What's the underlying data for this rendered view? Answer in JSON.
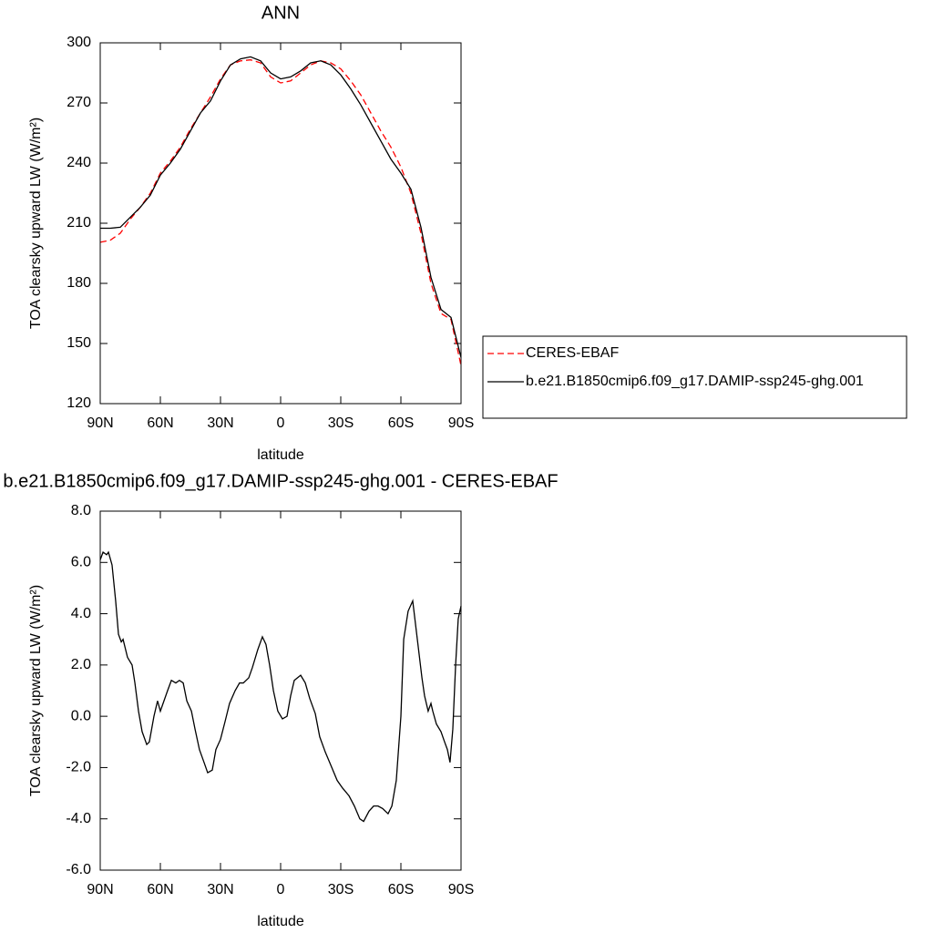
{
  "chart_data": [
    {
      "type": "line",
      "title": "ANN",
      "xlabel": "latitude",
      "ylabel": "TOA clearsky upward LW (W/m²)",
      "xlim": [
        90,
        -90
      ],
      "xticks": [
        {
          "value": 90,
          "label": "90N"
        },
        {
          "value": 60,
          "label": "60N"
        },
        {
          "value": 30,
          "label": "30N"
        },
        0,
        {
          "value": -30,
          "label": "30S"
        },
        {
          "value": -60,
          "label": "60S"
        },
        {
          "value": -90,
          "label": "90S"
        }
      ],
      "ylim": [
        120,
        300
      ],
      "yticks": [
        120,
        150,
        180,
        210,
        240,
        270,
        300
      ],
      "legend": "right",
      "x": [
        90,
        85,
        80,
        75,
        70,
        65,
        60,
        55,
        50,
        45,
        40,
        35,
        30,
        25,
        20,
        15,
        10,
        5,
        0,
        -5,
        -10,
        -15,
        -20,
        -25,
        -30,
        -35,
        -40,
        -45,
        -50,
        -55,
        -60,
        -65,
        -70,
        -75,
        -80,
        -85,
        -90
      ],
      "series": [
        {
          "name": "CERES-EBAF",
          "color": "#ff0000",
          "dashed": true,
          "values": [
            200.5,
            201.5,
            205,
            212,
            218,
            225,
            235,
            241,
            248,
            257,
            265,
            273,
            282,
            289,
            291,
            291.5,
            290,
            283,
            280,
            281,
            285,
            289,
            291,
            290,
            287,
            281,
            274,
            265,
            256,
            248,
            238,
            225,
            205,
            180,
            165,
            162,
            139
          ]
        },
        {
          "name": "b.e21.B1850cmip6.f09_g17.DAMIP-ssp245-ghg.001",
          "color": "#000000",
          "dashed": false,
          "values": [
            207.5,
            207.5,
            208,
            213,
            218,
            224,
            234,
            240,
            247,
            256,
            265,
            271,
            281,
            289,
            292,
            293,
            291,
            285,
            282,
            283,
            286,
            290,
            291,
            289,
            284,
            277,
            269,
            260,
            251,
            242,
            235,
            227,
            208,
            183,
            167,
            163,
            143
          ]
        }
      ]
    },
    {
      "type": "line",
      "title": "b.e21.B1850cmip6.f09_g17.DAMIP-ssp245-ghg.001 - CERES-EBAF",
      "xlabel": "latitude",
      "ylabel": "TOA clearsky upward LW (W/m²)",
      "xlim": [
        90,
        -90
      ],
      "xticks": [
        {
          "value": 90,
          "label": "90N"
        },
        {
          "value": 60,
          "label": "60N"
        },
        {
          "value": 30,
          "label": "30N"
        },
        0,
        {
          "value": -30,
          "label": "30S"
        },
        {
          "value": -60,
          "label": "60S"
        },
        {
          "value": -90,
          "label": "90S"
        }
      ],
      "ylim": [
        -6,
        8
      ],
      "yticks": [
        {
          "value": -6,
          "label": "-6.0"
        },
        {
          "value": -4,
          "label": "-4.0"
        },
        {
          "value": -2,
          "label": "-2.0"
        },
        {
          "value": 0,
          "label": "0.0"
        },
        {
          "value": 2,
          "label": "2.0"
        },
        {
          "value": 4,
          "label": "4.0"
        },
        {
          "value": 6,
          "label": "6.0"
        },
        {
          "value": 8,
          "label": "8.0"
        }
      ],
      "x": [
        90,
        88.6,
        86.8,
        85.9,
        84.1,
        82.3,
        80.9,
        79.5,
        78.6,
        76.4,
        74.1,
        72.7,
        70.9,
        69.1,
        66.8,
        65.5,
        63.2,
        61.4,
        60,
        58.2,
        56.4,
        54.5,
        52.3,
        50.5,
        48.6,
        46.8,
        44.5,
        42.7,
        40.5,
        38.2,
        36.4,
        34.1,
        32.3,
        30,
        27.7,
        25.5,
        22.7,
        20.5,
        18.6,
        15.9,
        14.1,
        11.4,
        9.1,
        7.3,
        5.5,
        3.6,
        1.4,
        -0.9,
        -3.2,
        -5,
        -6.8,
        -10,
        -12.3,
        -14.5,
        -17.3,
        -19.5,
        -22.3,
        -25,
        -28.2,
        -30.9,
        -34.1,
        -36.8,
        -39.5,
        -41.4,
        -44.1,
        -46.4,
        -48.6,
        -50.9,
        -53.6,
        -55.5,
        -57.7,
        -60,
        -61.4,
        -63.6,
        -65.9,
        -68.2,
        -70.5,
        -71.8,
        -73.6,
        -75,
        -75.9,
        -77.7,
        -80,
        -81.8,
        -83.2,
        -84.5,
        -85.9,
        -87.3,
        -88.6,
        -90
      ],
      "series": [
        {
          "color": "#000000",
          "dashed": false,
          "values": [
            6.1,
            6.4,
            6.3,
            6.4,
            5.9,
            4.5,
            3.2,
            2.9,
            3.0,
            2.3,
            2.0,
            1.3,
            0.2,
            -0.6,
            -1.1,
            -1.0,
            0.0,
            0.6,
            0.2,
            0.6,
            1.0,
            1.4,
            1.3,
            1.4,
            1.3,
            0.6,
            0.2,
            -0.5,
            -1.3,
            -1.8,
            -2.2,
            -2.1,
            -1.3,
            -0.9,
            -0.2,
            0.5,
            1.0,
            1.3,
            1.3,
            1.5,
            1.9,
            2.6,
            3.1,
            2.8,
            2.0,
            1.0,
            0.2,
            -0.1,
            0.0,
            0.8,
            1.4,
            1.6,
            1.3,
            0.7,
            0.1,
            -0.8,
            -1.4,
            -1.9,
            -2.5,
            -2.8,
            -3.1,
            -3.5,
            -4.0,
            -4.1,
            -3.7,
            -3.5,
            -3.5,
            -3.6,
            -3.8,
            -3.5,
            -2.5,
            0.0,
            3.0,
            4.1,
            4.5,
            3.0,
            1.5,
            0.8,
            0.2,
            0.5,
            0.2,
            -0.3,
            -0.6,
            -1.0,
            -1.3,
            -1.8,
            -0.5,
            2.0,
            3.8,
            4.3
          ]
        }
      ]
    }
  ]
}
